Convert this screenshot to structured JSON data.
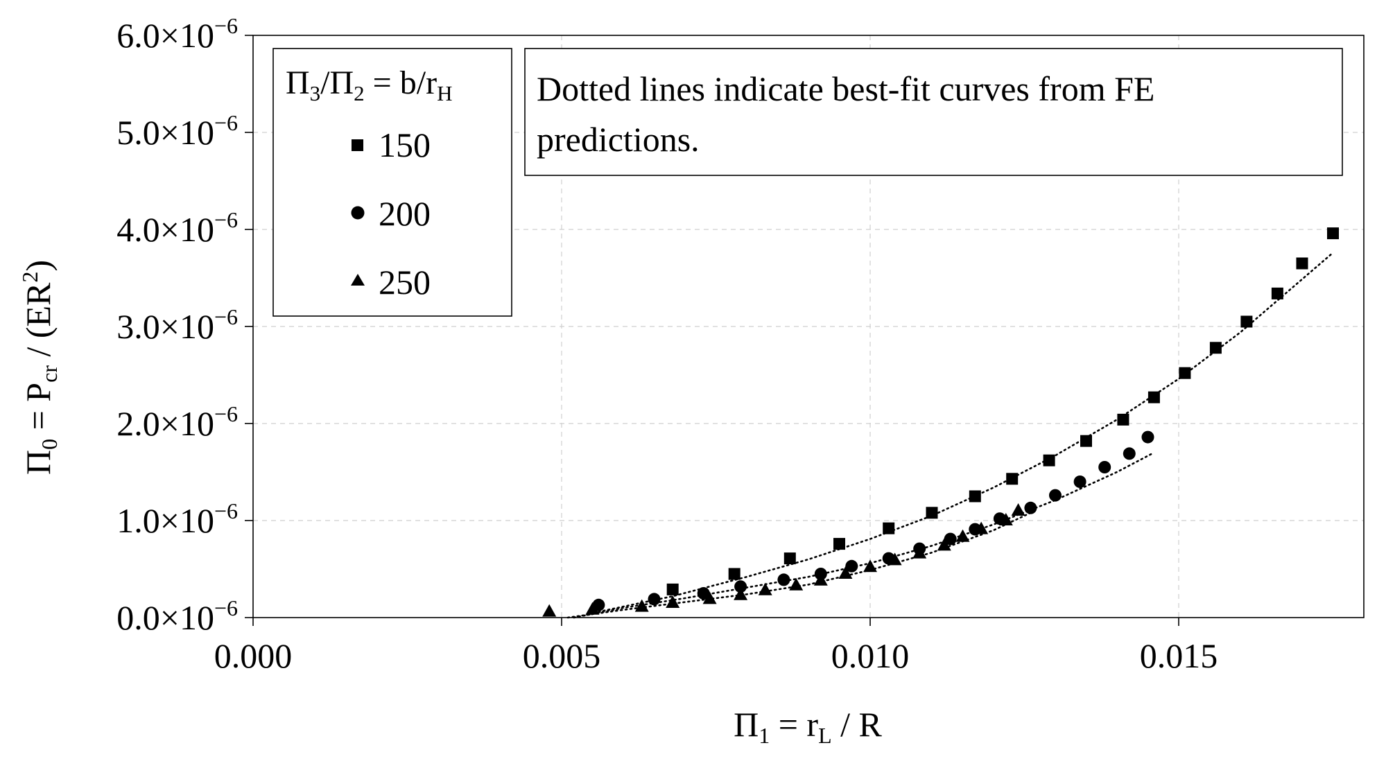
{
  "chart_data": {
    "type": "scatter",
    "title": "",
    "xlabel": "Π1 = rL / R",
    "xlabel_parts": {
      "main": "Π",
      "sub1": "1",
      "mid": " = r",
      "sub2": "L",
      "end": " / R"
    },
    "ylabel": "Π0 = Pcr / (ER2)",
    "ylabel_parts": {
      "main": "Π",
      "sub1": "0",
      "mid": " = P",
      "sub2": "cr",
      "mid2": " / (ER",
      "sup": "2",
      "end": ")"
    },
    "xlim": [
      0.0,
      0.018
    ],
    "ylim": [
      0.0,
      6.0
    ],
    "y_unit": "×10⁻⁶",
    "grid": true,
    "x_ticks": [
      {
        "value": 0.0,
        "label": "0.000"
      },
      {
        "value": 0.005,
        "label": "0.005"
      },
      {
        "value": 0.01,
        "label": "0.010"
      },
      {
        "value": 0.015,
        "label": "0.015"
      }
    ],
    "y_ticks": [
      {
        "value": 0.0,
        "base": "0.0×10",
        "exp": "−6"
      },
      {
        "value": 1.0,
        "base": "1.0×10",
        "exp": "−6"
      },
      {
        "value": 2.0,
        "base": "2.0×10",
        "exp": "−6"
      },
      {
        "value": 3.0,
        "base": "3.0×10",
        "exp": "−6"
      },
      {
        "value": 4.0,
        "base": "4.0×10",
        "exp": "−6"
      },
      {
        "value": 5.0,
        "base": "5.0×10",
        "exp": "−6"
      },
      {
        "value": 6.0,
        "base": "6.0×10",
        "exp": "−6"
      }
    ],
    "legend": {
      "placement": "top-left",
      "title_parts": {
        "a": "Π",
        "a_sub": "3",
        "b": "/Π",
        "b_sub": "2",
        "c": " = b/r",
        "c_sub": "H"
      },
      "entries": [
        {
          "label": "150",
          "marker": "square"
        },
        {
          "label": "200",
          "marker": "circle"
        },
        {
          "label": "250",
          "marker": "triangle"
        }
      ]
    },
    "annotation": {
      "placement": "top-center",
      "lines": [
        "Dotted lines indicate best-fit curves from FE",
        "predictions."
      ]
    },
    "series": [
      {
        "name": "150",
        "marker": "square",
        "points": [
          [
            0.0068,
            0.29
          ],
          [
            0.0078,
            0.45
          ],
          [
            0.0087,
            0.61
          ],
          [
            0.0095,
            0.76
          ],
          [
            0.0103,
            0.92
          ],
          [
            0.011,
            1.08
          ],
          [
            0.0117,
            1.25
          ],
          [
            0.0123,
            1.43
          ],
          [
            0.0129,
            1.62
          ],
          [
            0.0135,
            1.82
          ],
          [
            0.0141,
            2.04
          ],
          [
            0.0146,
            2.27
          ],
          [
            0.0151,
            2.52
          ],
          [
            0.0156,
            2.78
          ],
          [
            0.0161,
            3.05
          ],
          [
            0.0166,
            3.34
          ],
          [
            0.017,
            3.65
          ],
          [
            0.0175,
            3.96
          ]
        ],
        "fit": [
          [
            0.0056,
            0.06
          ],
          [
            0.0068,
            0.22
          ],
          [
            0.008,
            0.42
          ],
          [
            0.009,
            0.6
          ],
          [
            0.01,
            0.81
          ],
          [
            0.011,
            1.05
          ],
          [
            0.012,
            1.34
          ],
          [
            0.013,
            1.67
          ],
          [
            0.014,
            2.04
          ],
          [
            0.015,
            2.46
          ],
          [
            0.016,
            2.94
          ],
          [
            0.0175,
            3.76
          ]
        ]
      },
      {
        "name": "200",
        "marker": "circle",
        "points": [
          [
            0.0056,
            0.13
          ],
          [
            0.0065,
            0.19
          ],
          [
            0.0073,
            0.25
          ],
          [
            0.0079,
            0.32
          ],
          [
            0.0086,
            0.39
          ],
          [
            0.0092,
            0.45
          ],
          [
            0.0097,
            0.53
          ],
          [
            0.0103,
            0.61
          ],
          [
            0.0108,
            0.71
          ],
          [
            0.0113,
            0.81
          ],
          [
            0.0117,
            0.91
          ],
          [
            0.0121,
            1.02
          ],
          [
            0.0126,
            1.13
          ],
          [
            0.013,
            1.26
          ],
          [
            0.0134,
            1.4
          ],
          [
            0.0138,
            1.55
          ],
          [
            0.0142,
            1.69
          ],
          [
            0.0145,
            1.86
          ]
        ],
        "fit": [
          [
            0.0052,
            0.0
          ],
          [
            0.006,
            0.1
          ],
          [
            0.007,
            0.2
          ],
          [
            0.008,
            0.31
          ],
          [
            0.009,
            0.42
          ],
          [
            0.01,
            0.56
          ],
          [
            0.011,
            0.74
          ],
          [
            0.012,
            0.96
          ],
          [
            0.013,
            1.21
          ],
          [
            0.014,
            1.5
          ],
          [
            0.0146,
            1.7
          ]
        ]
      },
      {
        "name": "250",
        "marker": "triangle",
        "points": [
          [
            0.0048,
            0.06
          ],
          [
            0.0055,
            0.08
          ],
          [
            0.0063,
            0.11
          ],
          [
            0.0068,
            0.15
          ],
          [
            0.0074,
            0.19
          ],
          [
            0.0079,
            0.23
          ],
          [
            0.0083,
            0.28
          ],
          [
            0.0088,
            0.33
          ],
          [
            0.0092,
            0.38
          ],
          [
            0.0096,
            0.45
          ],
          [
            0.01,
            0.52
          ],
          [
            0.0104,
            0.59
          ],
          [
            0.0108,
            0.66
          ],
          [
            0.0112,
            0.74
          ],
          [
            0.0115,
            0.83
          ],
          [
            0.0118,
            0.91
          ],
          [
            0.0122,
            1.0
          ],
          [
            0.0124,
            1.1
          ]
        ],
        "fit": [
          [
            0.0051,
            0.0
          ],
          [
            0.006,
            0.08
          ],
          [
            0.007,
            0.16
          ],
          [
            0.008,
            0.24
          ],
          [
            0.009,
            0.34
          ],
          [
            0.01,
            0.49
          ],
          [
            0.011,
            0.67
          ],
          [
            0.012,
            0.9
          ],
          [
            0.0127,
            1.11
          ]
        ]
      }
    ]
  }
}
